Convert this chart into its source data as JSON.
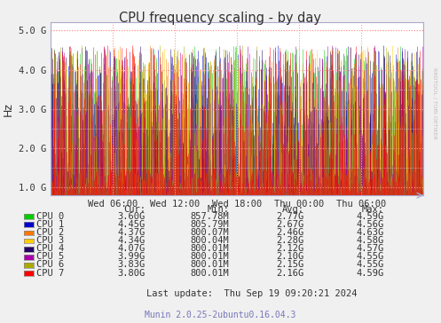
{
  "title": "CPU frequency scaling - by day",
  "ylabel": "Hz",
  "x_tick_labels": [
    "Wed 06:00",
    "Wed 12:00",
    "Wed 18:00",
    "Thu 00:00",
    "Thu 06:00"
  ],
  "x_tick_positions": [
    0.167,
    0.333,
    0.5,
    0.667,
    0.833
  ],
  "ylim_low": 800000000.0,
  "ylim_high": 5200000000.0,
  "yticks": [
    1000000000.0,
    2000000000.0,
    3000000000.0,
    4000000000.0,
    5000000000.0
  ],
  "ytick_labels": [
    "1.0 G",
    "2.0 G",
    "3.0 G",
    "4.0 G",
    "5.0 G"
  ],
  "cpu_colors": [
    "#00cc00",
    "#0000cc",
    "#ff7700",
    "#ffcc00",
    "#220066",
    "#aa00aa",
    "#aaaa00",
    "#ff0000"
  ],
  "cpu_names": [
    "CPU 0",
    "CPU 1",
    "CPU 2",
    "CPU 3",
    "CPU 4",
    "CPU 5",
    "CPU 6",
    "CPU 7"
  ],
  "cur_vals": [
    "3.60G",
    "4.45G",
    "4.37G",
    "4.34G",
    "4.07G",
    "3.99G",
    "3.83G",
    "3.80G"
  ],
  "min_vals": [
    "857.78M",
    "805.79M",
    "800.07M",
    "800.04M",
    "800.01M",
    "800.01M",
    "800.01M",
    "800.01M"
  ],
  "avg_vals": [
    "2.77G",
    "2.67G",
    "2.46G",
    "2.28G",
    "2.12G",
    "2.10G",
    "2.15G",
    "2.16G"
  ],
  "max_vals": [
    "4.59G",
    "4.56G",
    "4.63G",
    "4.58G",
    "4.57G",
    "4.55G",
    "4.55G",
    "4.59G"
  ],
  "last_update": "Last update:  Thu Sep 19 09:20:21 2024",
  "munin_version": "Munin 2.0.25-2ubuntu0.16.04.3",
  "rrdtool_text": "RRDTOOL / TOBI OETIKER",
  "background_color": "#f0f0f0",
  "plot_bg_color": "#ffffff",
  "grid_color": "#ff9999",
  "grid_color_minor": "#ddddff",
  "border_color": "#aaaacc",
  "num_points": 500,
  "min_freq": 800000000.0,
  "max_freq": 4630000000.0,
  "avg_freqs": [
    2770000000.0,
    2670000000.0,
    2460000000.0,
    2280000000.0,
    2120000000.0,
    2100000000.0,
    2150000000.0,
    2160000000.0
  ]
}
